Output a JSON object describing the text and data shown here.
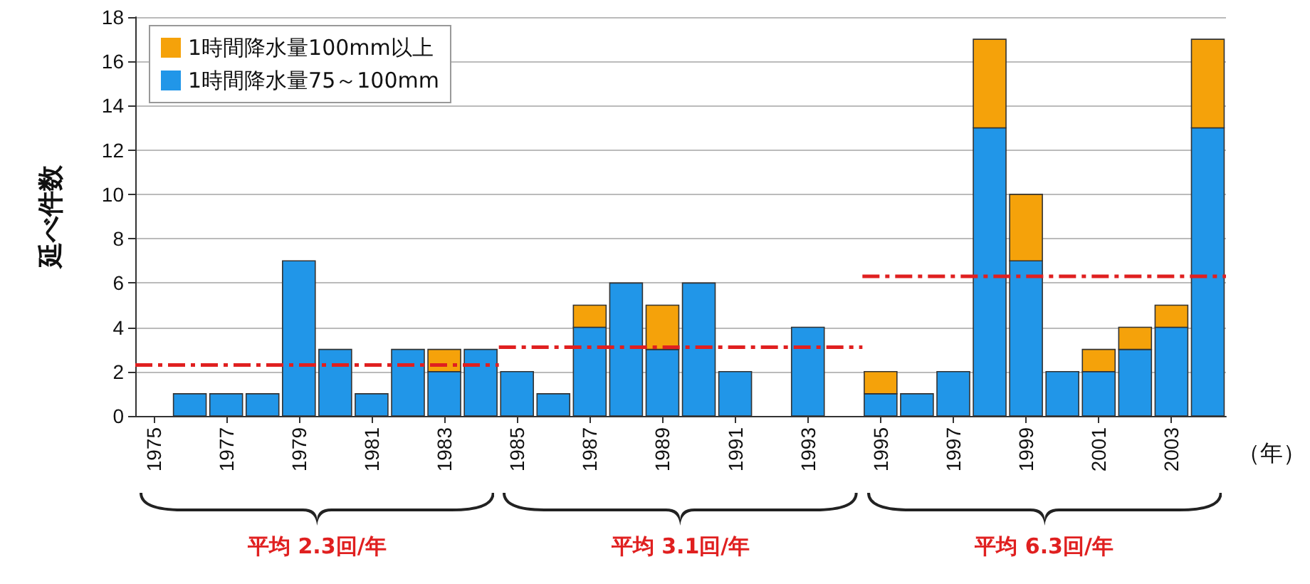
{
  "chart_data": {
    "type": "bar",
    "stacked": true,
    "ylabel": "延べ件数",
    "xlabel": "（年）",
    "x": [
      1975,
      1976,
      1977,
      1978,
      1979,
      1980,
      1981,
      1982,
      1983,
      1984,
      1985,
      1986,
      1987,
      1988,
      1989,
      1990,
      1991,
      1992,
      1993,
      1994,
      1995,
      1996,
      1997,
      1998,
      1999,
      2000,
      2001,
      2002,
      2003,
      2004
    ],
    "series": [
      {
        "name": "1時間降水量75～100mm",
        "color": "#2196e8",
        "values": [
          0,
          1,
          1,
          1,
          7,
          3,
          1,
          3,
          2,
          3,
          2,
          1,
          4,
          6,
          3,
          6,
          2,
          0,
          4,
          0,
          1,
          1,
          2,
          13,
          7,
          2,
          2,
          3,
          4,
          13
        ]
      },
      {
        "name": "1時間降水量100mm以上",
        "color": "#f5a20a",
        "values": [
          0,
          0,
          0,
          0,
          0,
          0,
          0,
          0,
          1,
          0,
          0,
          0,
          1,
          0,
          2,
          0,
          0,
          0,
          0,
          0,
          1,
          0,
          0,
          4,
          3,
          0,
          1,
          1,
          1,
          4
        ]
      },
      {
        "type": "line",
        "color": "#e02020",
        "line_style": "dashed",
        "x": [
          1974.5,
          1984.5
        ],
        "values": [
          2.3,
          2.3
        ]
      },
      {
        "type": "line",
        "color": "#e02020",
        "line_style": "dashed",
        "x": [
          1984.5,
          1994.5
        ],
        "values": [
          3.1,
          3.1
        ]
      },
      {
        "type": "line",
        "color": "#e02020",
        "line_style": "dashed",
        "x": [
          1994.5,
          2004.5
        ],
        "values": [
          6.3,
          6.3
        ]
      }
    ],
    "annotations": [
      "平均 2.3回/年",
      "平均 3.1回/年",
      "平均 6.3回/年"
    ],
    "xlim": [
      1974.5,
      2004.5
    ],
    "xticks": [
      1975,
      1977,
      1979,
      1981,
      1983,
      1985,
      1987,
      1989,
      1991,
      1993,
      1995,
      1997,
      1999,
      2001,
      2003
    ],
    "ylim": [
      0,
      18
    ],
    "yticks": [
      0,
      2,
      4,
      6,
      8,
      10,
      12,
      14,
      16,
      18
    ],
    "grid": "y",
    "legend": "top left"
  }
}
